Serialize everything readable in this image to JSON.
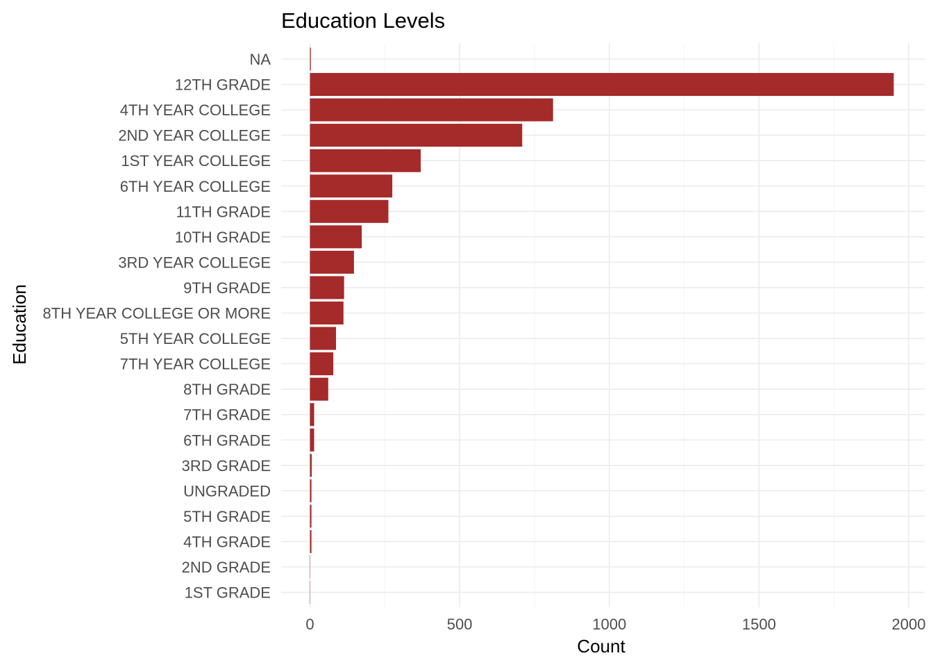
{
  "chart_data": {
    "type": "bar",
    "orientation": "horizontal",
    "title": "Education Levels",
    "xlabel": "Count",
    "ylabel": "Education",
    "bar_color": "#a52a2a",
    "grid": true,
    "xlim": [
      0,
      2000
    ],
    "xticks": [
      0,
      500,
      1000,
      1500,
      2000
    ],
    "categories": [
      "NA",
      "12TH GRADE",
      "4TH YEAR COLLEGE",
      "2ND YEAR COLLEGE",
      "1ST YEAR COLLEGE",
      "6TH YEAR COLLEGE",
      "11TH GRADE",
      "10TH GRADE",
      "3RD YEAR COLLEGE",
      "9TH GRADE",
      "8TH YEAR COLLEGE OR MORE",
      "5TH YEAR COLLEGE",
      "7TH YEAR COLLEGE",
      "8TH GRADE",
      "7TH GRADE",
      "6TH GRADE",
      "3RD GRADE",
      "UNGRADED",
      "5TH GRADE",
      "4TH GRADE",
      "2ND GRADE",
      "1ST GRADE"
    ],
    "values": [
      3,
      1950,
      812,
      709,
      370,
      275,
      262,
      173,
      147,
      114,
      112,
      87,
      78,
      61,
      14,
      14,
      6,
      5,
      5,
      5,
      1,
      1
    ]
  }
}
